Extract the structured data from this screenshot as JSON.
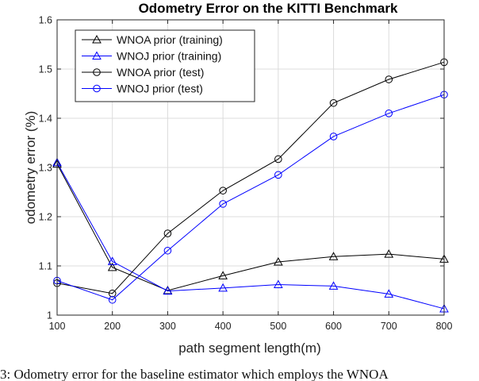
{
  "chart_data": {
    "type": "line",
    "title": "Odometry Error on the KITTI Benchmark",
    "xlabel": "path segment length(m)",
    "ylabel": "odometry error (%)",
    "xlim": [
      100,
      800
    ],
    "ylim": [
      1,
      1.6
    ],
    "xticks": [
      "100",
      "200",
      "300",
      "400",
      "500",
      "600",
      "700",
      "800"
    ],
    "yticks": [
      "1",
      "1.1",
      "1.2",
      "1.3",
      "1.4",
      "1.5",
      "1.6"
    ],
    "grid": true,
    "legend_position": "top-left",
    "x": [
      100,
      200,
      300,
      400,
      500,
      600,
      700,
      800
    ],
    "series": [
      {
        "name": "WNOA prior (training)",
        "color": "#000000",
        "marker": "triangle",
        "values": [
          1.307,
          1.097,
          1.05,
          1.08,
          1.108,
          1.119,
          1.124,
          1.114
        ]
      },
      {
        "name": "WNOJ prior (training)",
        "color": "#0000ff",
        "marker": "triangle",
        "values": [
          1.31,
          1.109,
          1.049,
          1.055,
          1.062,
          1.059,
          1.043,
          1.013
        ]
      },
      {
        "name": "WNOA prior (test)",
        "color": "#000000",
        "marker": "circle",
        "values": [
          1.065,
          1.044,
          1.166,
          1.253,
          1.317,
          1.431,
          1.479,
          1.514
        ]
      },
      {
        "name": "WNOJ prior (test)",
        "color": "#0000ff",
        "marker": "circle",
        "values": [
          1.07,
          1.031,
          1.131,
          1.226,
          1.285,
          1.363,
          1.41,
          1.448
        ]
      }
    ]
  },
  "caption": "3: Odometry error for the baseline estimator which employs the WNOA"
}
